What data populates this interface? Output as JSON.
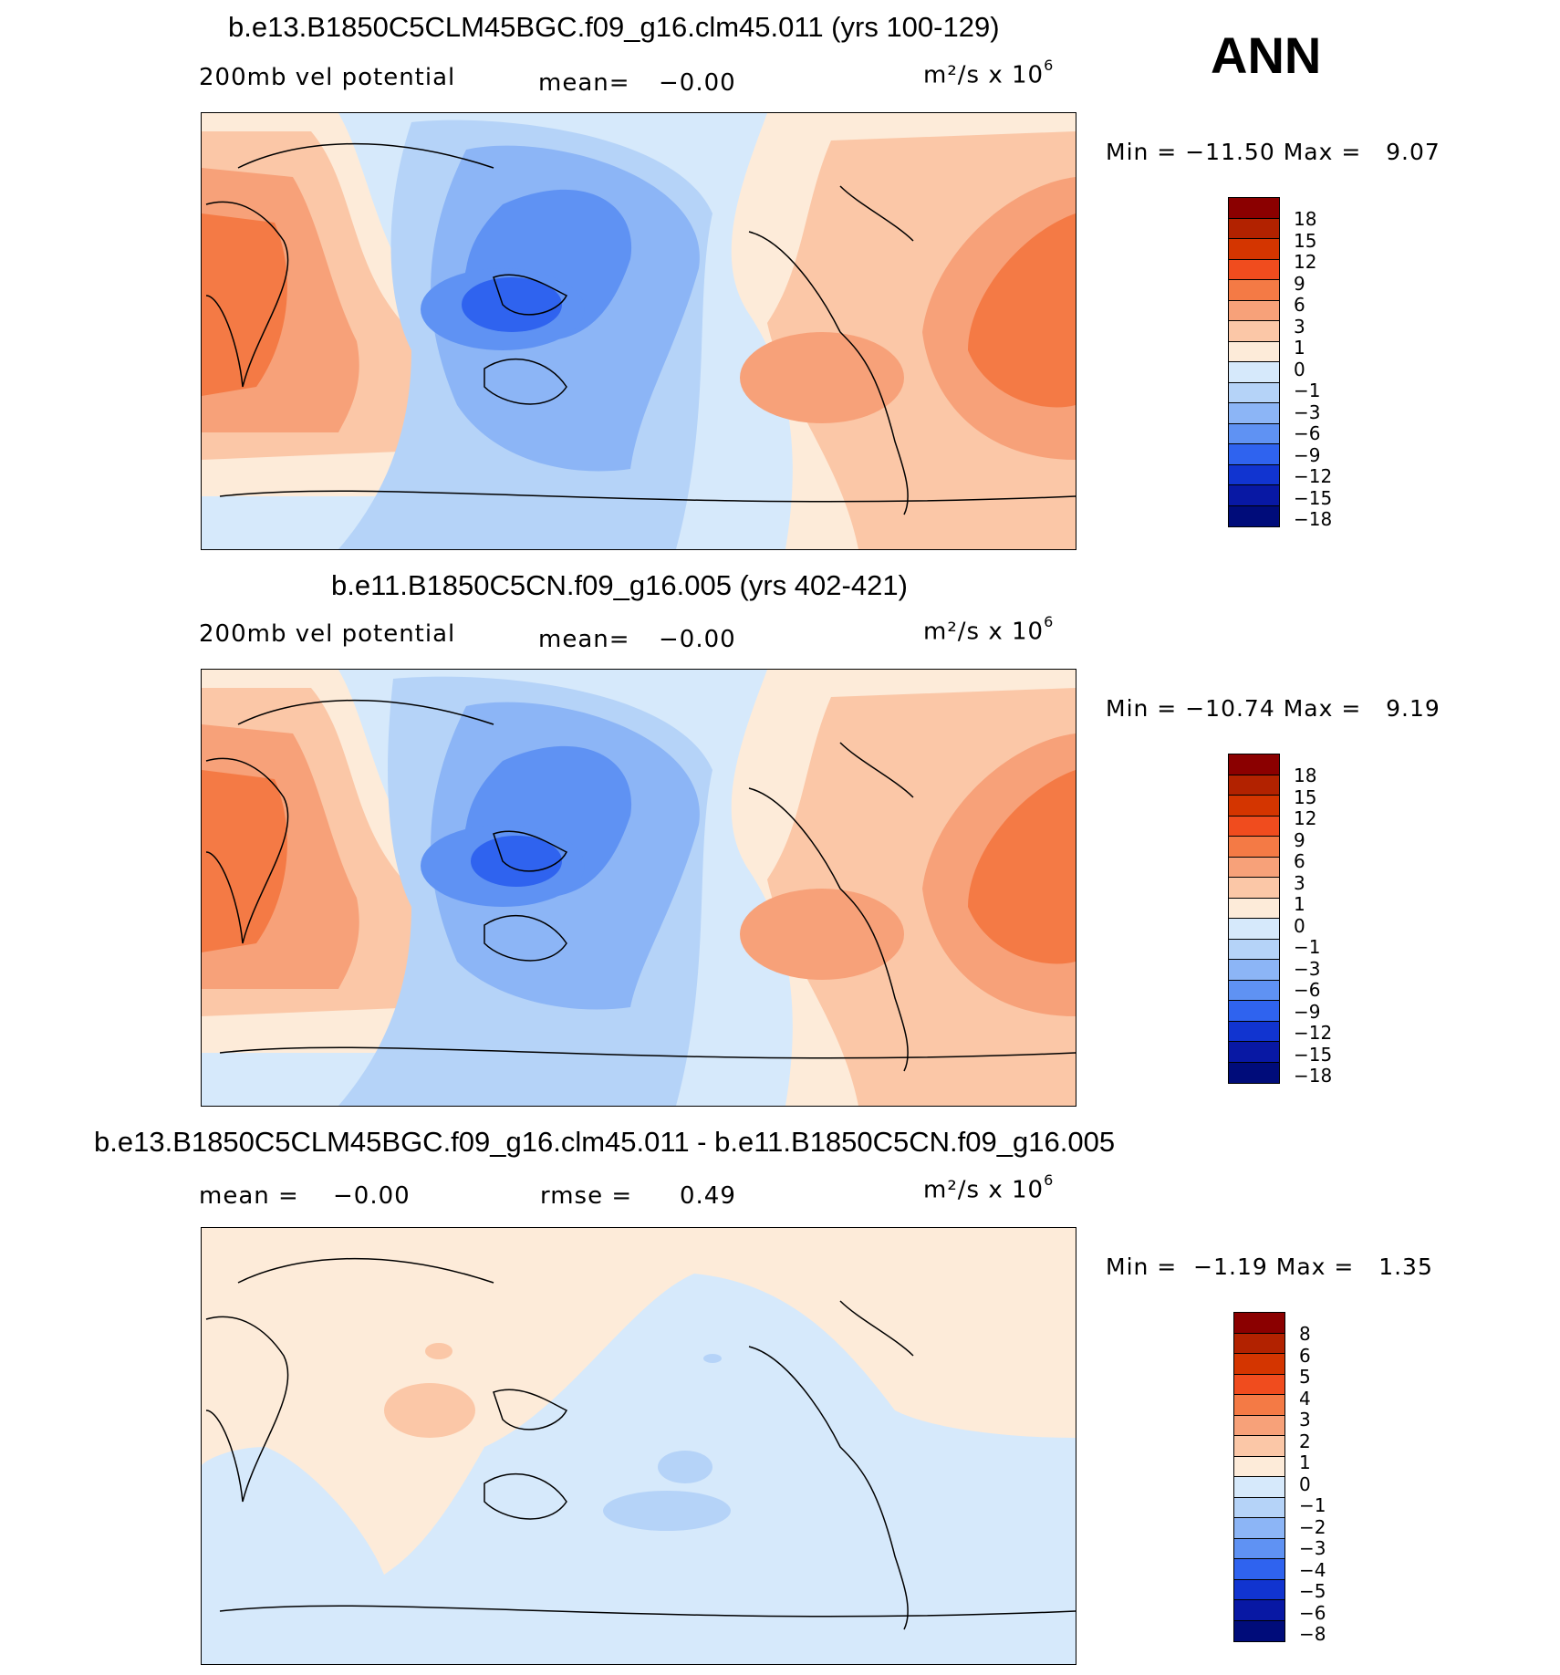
{
  "season": "ANN",
  "panels": [
    {
      "title": "b.e13.B1850C5CLM45BGC.f09_g16.clm45.011 (yrs 100-129)",
      "left_label": "200mb vel potential",
      "mean_label": "mean=",
      "mean_value": "−0.00",
      "units_base": "m²/s x 10",
      "units_exp": "6",
      "min_label": "Min =",
      "min_value": "−11.50",
      "max_label": "Max =",
      "max_value": "9.07",
      "colorbar_labels": [
        "18",
        "15",
        "12",
        "9",
        "6",
        "3",
        "1",
        "0",
        "−1",
        "−3",
        "−6",
        "−9",
        "−12",
        "−15",
        "−18"
      ]
    },
    {
      "title": "b.e11.B1850C5CN.f09_g16.005 (yrs 402-421)",
      "left_label": "200mb vel potential",
      "mean_label": "mean=",
      "mean_value": "−0.00",
      "units_base": "m²/s x 10",
      "units_exp": "6",
      "min_label": "Min =",
      "min_value": "−10.74",
      "max_label": "Max =",
      "max_value": "9.19",
      "colorbar_labels": [
        "18",
        "15",
        "12",
        "9",
        "6",
        "3",
        "1",
        "0",
        "−1",
        "−3",
        "−6",
        "−9",
        "−12",
        "−15",
        "−18"
      ]
    },
    {
      "title": "b.e13.B1850C5CLM45BGC.f09_g16.clm45.011 - b.e11.B1850C5CN.f09_g16.005",
      "mean_label": "mean =",
      "mean_value": "−0.00",
      "rmse_label": "rmse =",
      "rmse_value": "0.49",
      "units_base": "m²/s x 10",
      "units_exp": "6",
      "min_label": "Min =",
      "min_value": "−1.19",
      "max_label": "Max =",
      "max_value": "1.35",
      "colorbar_labels": [
        "8",
        "6",
        "5",
        "4",
        "3",
        "2",
        "1",
        "0",
        "−1",
        "−2",
        "−3",
        "−4",
        "−5",
        "−6",
        "−8"
      ]
    }
  ],
  "colors": {
    "scale": [
      "#8b0000",
      "#b22200",
      "#d43500",
      "#f04c1e",
      "#f47a45",
      "#f7a179",
      "#fbc7a7",
      "#fdebd9",
      "#d6e9fb",
      "#b5d3f8",
      "#8cb5f6",
      "#5f92f3",
      "#2f63ef",
      "#1134d0",
      "#0818a4",
      "#000c7a"
    ],
    "coast": "#000000"
  }
}
